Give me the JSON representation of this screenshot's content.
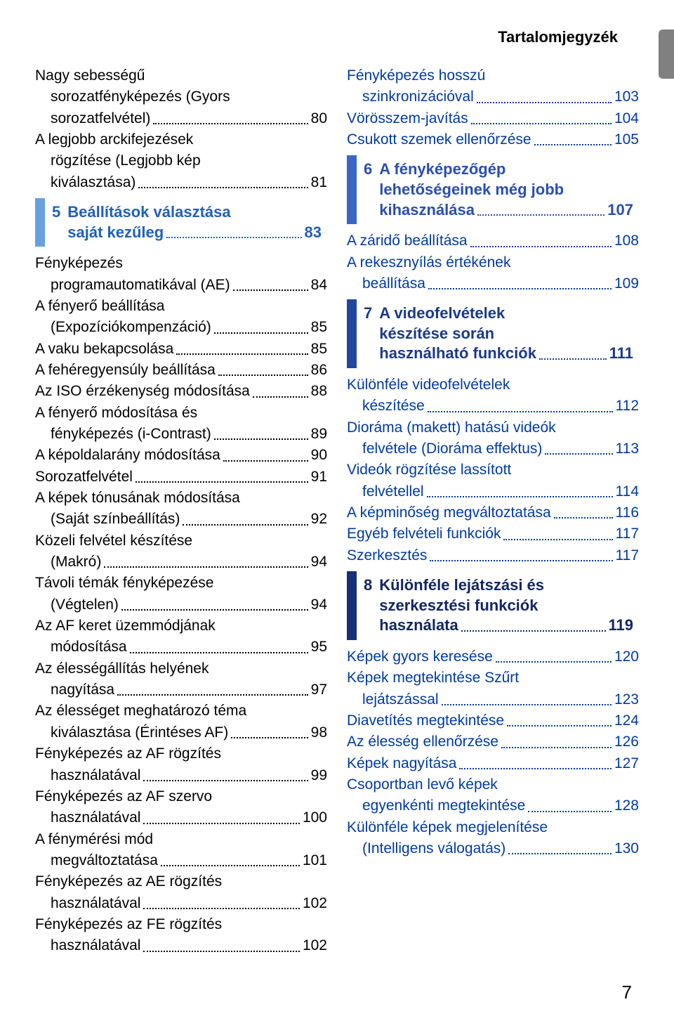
{
  "header_title": "Tartalomjegyzék",
  "page_number": "7",
  "colors": {
    "link": "#003a9e",
    "text": "#000000",
    "ch5_border": "#6aa0e0",
    "ch5_text": "#2060b8",
    "ch6_border": "#3a66c6",
    "ch6_text": "#2a4eb0",
    "ch7_border": "#20469e",
    "ch7_text": "#1a3a88",
    "ch8_border": "#152f78",
    "ch8_text": "#122664"
  },
  "left": [
    {
      "type": "entry",
      "label": "Nagy sebességű sorozatfényképezés (Gyors sorozatfelvétel)",
      "page": "80",
      "link": false,
      "indent": 0
    },
    {
      "type": "entry",
      "label": "A legjobb arckifejezések rögzítése (Legjobb kép kiválasztása)",
      "page": "81",
      "link": false,
      "indent": 0
    },
    {
      "type": "chapter",
      "num": "5",
      "label": "Beállítások választása saját kezűleg",
      "page": "83",
      "border": "ch5_border",
      "text": "ch5_text"
    },
    {
      "type": "entry",
      "label": "Fényképezés programautomatikával (AE)",
      "page": "84",
      "link": false,
      "indent": 0
    },
    {
      "type": "entry",
      "label": "A fényerő beállítása (Expozíciókompenzáció)",
      "page": "85",
      "link": false,
      "indent": 0
    },
    {
      "type": "entry",
      "label": "A vaku bekapcsolása",
      "page": "85",
      "link": false,
      "indent": 0
    },
    {
      "type": "entry",
      "label": "A fehéregyensúly beállítása",
      "page": "86",
      "link": false,
      "indent": 0
    },
    {
      "type": "entry",
      "label": "Az ISO érzékenység módosítása",
      "page": "88",
      "link": false,
      "indent": 0
    },
    {
      "type": "entry",
      "label": "A fényerő módosítása és fényképezés (i-Contrast)",
      "page": "89",
      "link": false,
      "indent": 0
    },
    {
      "type": "entry",
      "label": "A képoldalarány módosítása",
      "page": "90",
      "link": false,
      "indent": 0
    },
    {
      "type": "entry",
      "label": "Sorozatfelvétel",
      "page": "91",
      "link": false,
      "indent": 0
    },
    {
      "type": "entry",
      "label": "A képek tónusának módosítása (Saját színbeállítás)",
      "page": "92",
      "link": false,
      "indent": 0
    },
    {
      "type": "entry",
      "label": "Közeli felvétel készítése (Makró)",
      "page": "94",
      "link": false,
      "indent": 0
    },
    {
      "type": "entry",
      "label": "Távoli témák fényképezése (Végtelen)",
      "page": "94",
      "link": false,
      "indent": 0
    },
    {
      "type": "entry",
      "label": "Az AF keret üzemmódjának módosítása",
      "page": "95",
      "link": false,
      "indent": 0
    },
    {
      "type": "entry",
      "label": "Az élességállítás helyének nagyítása",
      "page": "97",
      "link": false,
      "indent": 0
    },
    {
      "type": "entry",
      "label": "Az élességet meghatározó téma kiválasztása (Érintéses AF)",
      "page": "98",
      "link": false,
      "indent": 0
    },
    {
      "type": "entry",
      "label": "Fényképezés az AF rögzítés használatával",
      "page": "99",
      "link": false,
      "indent": 0
    },
    {
      "type": "entry",
      "label": "Fényképezés az AF szervo használatával",
      "page": "100",
      "link": false,
      "indent": 0
    },
    {
      "type": "entry",
      "label": "A fénymérési mód megváltoztatása",
      "page": "101",
      "link": false,
      "indent": 0
    },
    {
      "type": "entry",
      "label": "Fényképezés az AE rögzítés használatával",
      "page": "102",
      "link": false,
      "indent": 0
    },
    {
      "type": "entry",
      "label": "Fényképezés az FE rögzítés használatával",
      "page": "102",
      "link": false,
      "indent": 0
    }
  ],
  "right": [
    {
      "type": "entry",
      "label": "Fényképezés hosszú szinkronizációval",
      "page": "103",
      "link": true,
      "indent": 0
    },
    {
      "type": "entry",
      "label": "Vörösszem-javítás",
      "page": "104",
      "link": true,
      "indent": 0
    },
    {
      "type": "entry",
      "label": "Csukott szemek ellenőrzése",
      "page": "105",
      "link": true,
      "indent": 0
    },
    {
      "type": "chapter",
      "num": "6",
      "label": "A fényképezőgép lehetőségeinek még jobb kihasználása",
      "page": "107",
      "border": "ch6_border",
      "text": "ch6_text"
    },
    {
      "type": "entry",
      "label": "A záridő beállítása",
      "page": "108",
      "link": true,
      "indent": 0
    },
    {
      "type": "entry",
      "label": "A rekesznyílás értékének beállítása",
      "page": "109",
      "link": true,
      "indent": 0
    },
    {
      "type": "chapter",
      "num": "7",
      "label": "A videofelvételek készítése során használható funkciók",
      "page": "111",
      "border": "ch7_border",
      "text": "ch7_text"
    },
    {
      "type": "entry",
      "label": "Különféle videofelvételek készítése",
      "page": "112",
      "link": true,
      "indent": 0
    },
    {
      "type": "entry",
      "label": "Dioráma (makett) hatású videók felvétele (Dioráma effektus)",
      "page": "113",
      "link": true,
      "indent": 0
    },
    {
      "type": "entry",
      "label": "Videók rögzítése lassított felvétellel",
      "page": "114",
      "link": true,
      "indent": 0
    },
    {
      "type": "entry",
      "label": "A képminőség megváltoztatása",
      "page": "116",
      "link": true,
      "indent": 0
    },
    {
      "type": "entry",
      "label": "Egyéb felvételi funkciók",
      "page": "117",
      "link": true,
      "indent": 0
    },
    {
      "type": "entry",
      "label": "Szerkesztés",
      "page": "117",
      "link": true,
      "indent": 0
    },
    {
      "type": "chapter",
      "num": "8",
      "label": "Különféle lejátszási és szerkesztési funkciók használata",
      "page": "119",
      "border": "ch8_border",
      "text": "ch8_text"
    },
    {
      "type": "entry",
      "label": "Képek gyors keresése",
      "page": "120",
      "link": true,
      "indent": 0
    },
    {
      "type": "entry",
      "label": "Képek megtekintése Szűrt lejátszással",
      "page": "123",
      "link": true,
      "indent": 0
    },
    {
      "type": "entry",
      "label": "Diavetítés megtekintése",
      "page": "124",
      "link": true,
      "indent": 0
    },
    {
      "type": "entry",
      "label": "Az élesség ellenőrzése",
      "page": "126",
      "link": true,
      "indent": 0
    },
    {
      "type": "entry",
      "label": "Képek nagyítása",
      "page": "127",
      "link": true,
      "indent": 0
    },
    {
      "type": "entry",
      "label": "Csoportban levő képek egyenkénti megtekintése",
      "page": "128",
      "link": true,
      "indent": 0
    },
    {
      "type": "entry",
      "label": "Különféle képek megjelenítése (Intelligens válogatás)",
      "page": "130",
      "link": true,
      "indent": 0
    }
  ]
}
